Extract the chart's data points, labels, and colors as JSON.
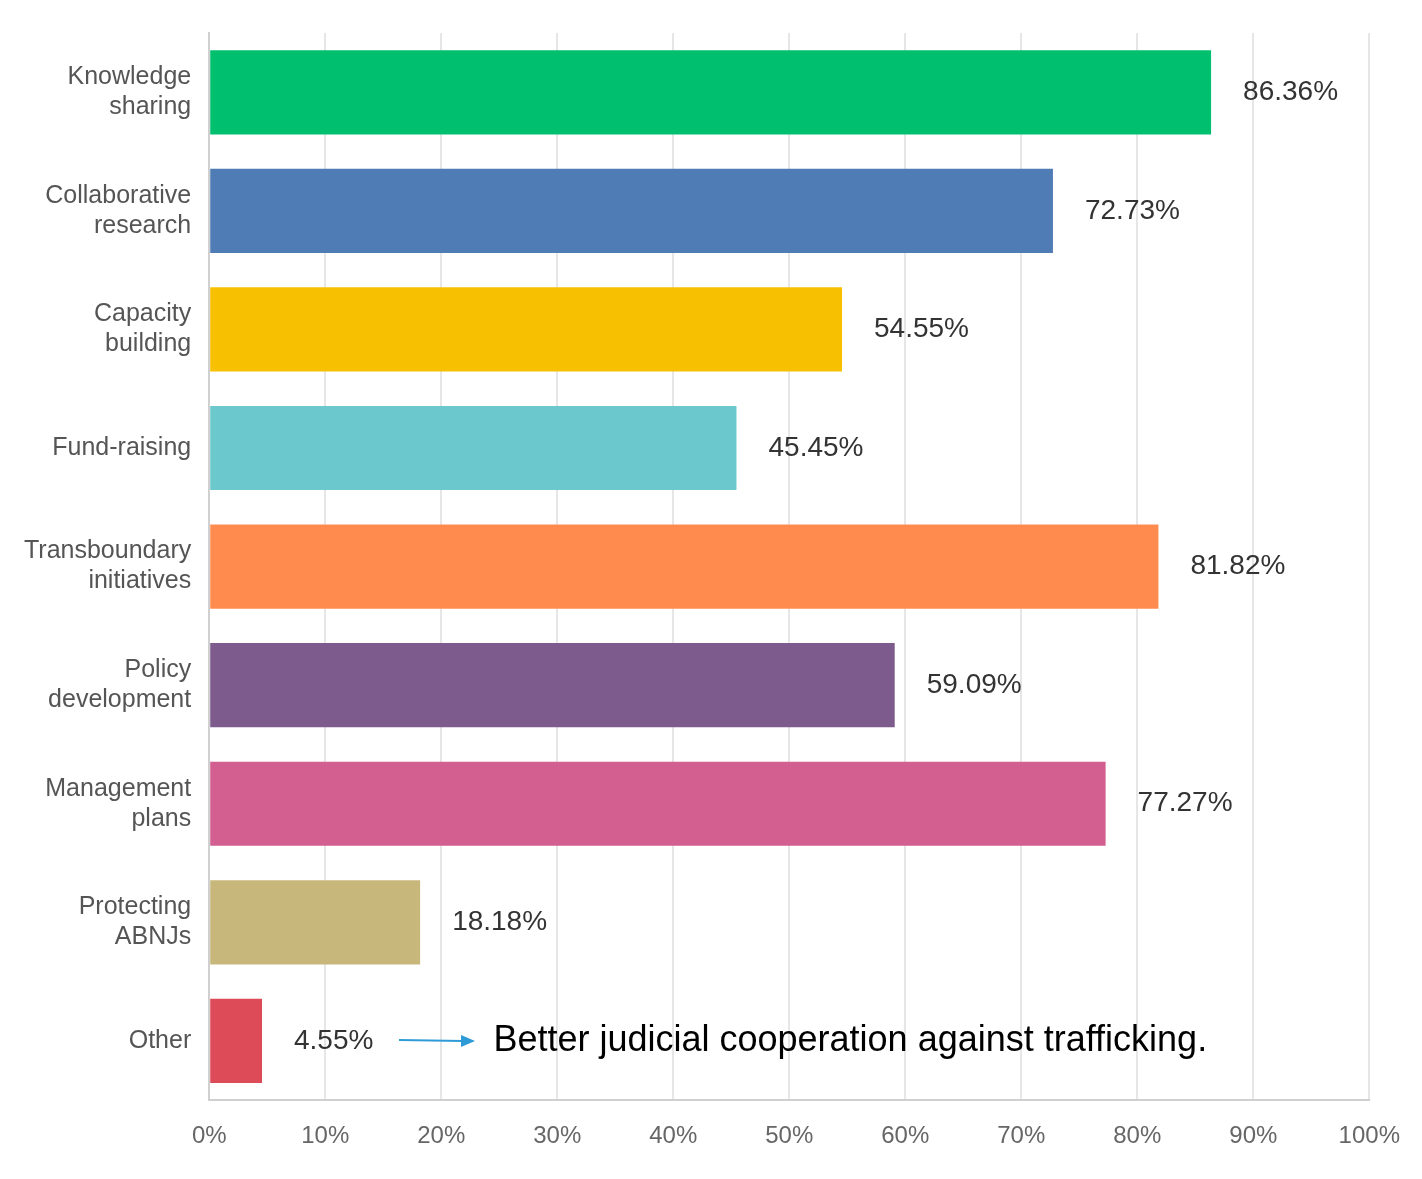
{
  "chart_data": {
    "type": "bar",
    "orientation": "horizontal",
    "categories": [
      "Knowledge sharing",
      "Collaborative research",
      "Capacity building",
      "Fund-raising",
      "Transboundary initiatives",
      "Policy development",
      "Management plans",
      "Protecting ABNJs",
      "Other"
    ],
    "values": [
      86.36,
      72.73,
      54.55,
      45.45,
      81.82,
      59.09,
      77.27,
      18.18,
      4.55
    ],
    "colors": [
      "#00bf6f",
      "#507cb6",
      "#f7c000",
      "#6bc8cd",
      "#ff8b4f",
      "#7d5b8d",
      "#d25f90",
      "#c8b77a",
      "#dd4b59"
    ],
    "value_labels": [
      "86.36%",
      "72.73%",
      "54.55%",
      "45.45%",
      "81.82%",
      "59.09%",
      "77.27%",
      "18.18%",
      "4.55%"
    ],
    "xlim": [
      0,
      100
    ],
    "xticks": [
      {
        "value": 0,
        "label": "0%"
      },
      {
        "value": 10,
        "label": "10%"
      },
      {
        "value": 20,
        "label": "20%"
      },
      {
        "value": 30,
        "label": "30%"
      },
      {
        "value": 40,
        "label": "40%"
      },
      {
        "value": 50,
        "label": "50%"
      },
      {
        "value": 60,
        "label": "60%"
      },
      {
        "value": 70,
        "label": "70%"
      },
      {
        "value": 80,
        "label": "80%"
      },
      {
        "value": 90,
        "label": "90%"
      },
      {
        "value": 100,
        "label": "100%"
      }
    ],
    "grid": "x",
    "annotations": [
      "Better judicial cooperation against trafficking."
    ]
  }
}
